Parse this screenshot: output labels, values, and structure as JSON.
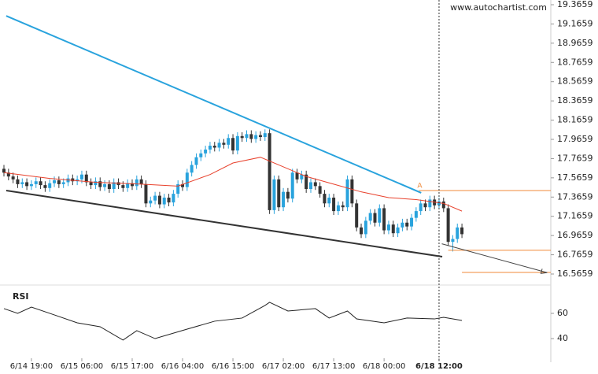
{
  "chart_data": {
    "type": "candlestick",
    "site": "www.autochartist.com",
    "up_color": "#29a3dd",
    "down_color": "#333333",
    "xlim": [
      -0.86,
      119.4
    ],
    "xticks": [
      {
        "value": 6,
        "label": "6/14 19:00"
      },
      {
        "value": 17,
        "label": "6/15 06:00"
      },
      {
        "value": 28,
        "label": "6/15 17:00"
      },
      {
        "value": 39,
        "label": "6/16 04:00"
      },
      {
        "value": 50,
        "label": "6/16 15:00"
      },
      {
        "value": 61,
        "label": "6/17 02:00"
      },
      {
        "value": 72,
        "label": "6/17 13:00"
      },
      {
        "value": 83,
        "label": "6/18 00:00"
      },
      {
        "value": 95,
        "label": "6/18 12:00"
      }
    ],
    "ylim": [
      16.484,
      19.415
    ],
    "yticks": [
      19.3659,
      19.1659,
      18.9659,
      18.7659,
      18.5659,
      18.3659,
      18.1659,
      17.9659,
      17.7659,
      17.5659,
      17.3659,
      17.1659,
      16.9659,
      16.7659,
      16.5659
    ],
    "open": [
      17.66,
      17.62,
      17.58,
      17.55,
      17.5,
      17.52,
      17.48,
      17.5,
      17.53,
      17.49,
      17.46,
      17.51,
      17.54,
      17.5,
      17.52,
      17.56,
      17.53,
      17.55,
      17.6,
      17.52,
      17.49,
      17.53,
      17.47,
      17.5,
      17.45,
      17.52,
      17.49,
      17.46,
      17.51,
      17.48,
      17.55,
      17.5,
      17.3,
      17.33,
      17.38,
      17.29,
      17.36,
      17.31,
      17.4,
      17.5,
      17.47,
      17.62,
      17.7,
      17.78,
      17.82,
      17.86,
      17.9,
      17.88,
      17.93,
      17.91,
      17.98,
      17.85,
      18.0,
      17.98,
      18.02,
      17.97,
      18.01,
      17.99,
      18.03,
      17.23,
      17.55,
      17.26,
      17.42,
      17.35,
      17.62,
      17.55,
      17.6,
      17.45,
      17.52,
      17.48,
      17.4,
      17.3,
      17.36,
      17.22,
      17.28,
      17.26,
      17.55,
      17.3,
      17.05,
      16.98,
      17.12,
      17.2,
      17.1,
      17.25,
      17.02,
      17.08,
      16.99,
      17.05,
      17.1,
      17.06,
      17.15,
      17.22,
      17.3,
      17.26,
      17.34,
      17.28,
      17.32,
      17.25,
      16.9,
      16.93,
      17.05
    ],
    "high": [
      17.7,
      17.66,
      17.62,
      17.59,
      17.56,
      17.56,
      17.54,
      17.57,
      17.57,
      17.53,
      17.55,
      17.58,
      17.58,
      17.56,
      17.6,
      17.6,
      17.59,
      17.64,
      17.64,
      17.56,
      17.57,
      17.57,
      17.54,
      17.54,
      17.56,
      17.56,
      17.53,
      17.55,
      17.55,
      17.59,
      17.59,
      17.54,
      17.37,
      17.42,
      17.42,
      17.4,
      17.4,
      17.44,
      17.54,
      17.54,
      17.66,
      17.74,
      17.82,
      17.86,
      17.9,
      17.94,
      17.94,
      17.97,
      17.97,
      18.02,
      18.02,
      18.04,
      18.04,
      18.06,
      18.06,
      18.05,
      18.05,
      18.07,
      18.07,
      17.59,
      17.59,
      17.46,
      17.46,
      17.66,
      17.66,
      17.64,
      17.64,
      17.56,
      17.56,
      17.52,
      17.44,
      17.4,
      17.4,
      17.32,
      17.32,
      17.59,
      17.59,
      17.34,
      17.09,
      17.16,
      17.24,
      17.24,
      17.29,
      17.29,
      17.12,
      17.12,
      17.09,
      17.14,
      17.14,
      17.19,
      17.26,
      17.34,
      17.34,
      17.38,
      17.38,
      17.36,
      17.36,
      17.29,
      16.97,
      17.09,
      17.09
    ],
    "low": [
      17.58,
      17.54,
      17.51,
      17.46,
      17.46,
      17.44,
      17.44,
      17.46,
      17.45,
      17.42,
      17.42,
      17.47,
      17.46,
      17.46,
      17.48,
      17.49,
      17.49,
      17.51,
      17.48,
      17.45,
      17.45,
      17.43,
      17.43,
      17.41,
      17.41,
      17.45,
      17.42,
      17.42,
      17.44,
      17.44,
      17.46,
      17.26,
      17.26,
      17.29,
      17.25,
      17.25,
      17.27,
      17.27,
      17.36,
      17.43,
      17.43,
      17.58,
      17.66,
      17.74,
      17.78,
      17.82,
      17.84,
      17.84,
      17.87,
      17.87,
      17.81,
      17.81,
      17.94,
      17.94,
      17.93,
      17.93,
      17.95,
      17.95,
      17.19,
      17.19,
      17.22,
      17.22,
      17.31,
      17.31,
      17.51,
      17.51,
      17.41,
      17.41,
      17.44,
      17.36,
      17.26,
      17.26,
      17.18,
      17.18,
      17.22,
      17.22,
      17.26,
      17.01,
      16.94,
      16.94,
      17.08,
      17.06,
      17.06,
      16.98,
      16.98,
      16.95,
      16.95,
      17.01,
      17.02,
      17.02,
      17.11,
      17.18,
      17.22,
      17.22,
      17.24,
      17.24,
      17.21,
      16.86,
      16.8,
      16.89,
      16.94
    ],
    "close": [
      17.62,
      17.58,
      17.55,
      17.5,
      17.52,
      17.48,
      17.5,
      17.53,
      17.49,
      17.46,
      17.51,
      17.54,
      17.5,
      17.52,
      17.56,
      17.53,
      17.55,
      17.6,
      17.52,
      17.49,
      17.53,
      17.47,
      17.5,
      17.45,
      17.52,
      17.49,
      17.46,
      17.51,
      17.48,
      17.55,
      17.5,
      17.3,
      17.33,
      17.38,
      17.29,
      17.36,
      17.31,
      17.4,
      17.5,
      17.47,
      17.62,
      17.7,
      17.78,
      17.82,
      17.86,
      17.9,
      17.88,
      17.93,
      17.91,
      17.98,
      17.85,
      18.0,
      17.98,
      18.02,
      17.97,
      18.01,
      17.99,
      18.03,
      17.23,
      17.55,
      17.26,
      17.42,
      17.35,
      17.62,
      17.55,
      17.6,
      17.45,
      17.52,
      17.48,
      17.4,
      17.3,
      17.36,
      17.22,
      17.28,
      17.26,
      17.55,
      17.3,
      17.05,
      16.98,
      17.12,
      17.2,
      17.1,
      17.25,
      17.02,
      17.08,
      16.99,
      17.05,
      17.1,
      17.06,
      17.15,
      17.22,
      17.3,
      17.26,
      17.34,
      17.28,
      17.32,
      17.25,
      16.9,
      16.93,
      17.05,
      16.98
    ],
    "moving_average": {
      "color": "#e8412c",
      "x": [
        0,
        10,
        20,
        30,
        38,
        45,
        50,
        56,
        60,
        66,
        72,
        78,
        84,
        90,
        96,
        100
      ],
      "values": [
        17.62,
        17.56,
        17.52,
        17.5,
        17.48,
        17.6,
        17.72,
        17.78,
        17.7,
        17.58,
        17.5,
        17.42,
        17.36,
        17.34,
        17.3,
        17.22
      ]
    },
    "resistance_line": {
      "color": "#29a3dd",
      "x": [
        0.5,
        91.1
      ],
      "values": [
        19.25,
        17.41
      ]
    },
    "support_line": {
      "color": "#333333",
      "x": [
        0.5,
        95.7
      ],
      "values": [
        17.434,
        16.746
      ]
    },
    "levels": {
      "color": "#f08a3a",
      "label": "A",
      "x": [
        90.6,
        97,
        100
      ],
      "values": [
        17.434,
        16.812,
        16.582
      ]
    },
    "forecast_arrow": {
      "color": "#444444",
      "x": [
        95.6,
        118.6
      ],
      "values": [
        16.88,
        16.58
      ]
    },
    "marker_x": 95,
    "rsi": {
      "title": "RSI",
      "color": "#222222",
      "ylim": [
        24.4,
        77.5
      ],
      "yticks": [
        60,
        40
      ],
      "x": [
        0,
        3,
        6,
        11,
        16,
        21,
        26,
        29,
        33,
        40,
        46,
        52,
        57,
        58,
        62,
        68,
        71,
        75,
        77,
        83,
        88,
        94,
        96,
        100
      ],
      "values": [
        63.8,
        60,
        65,
        58.8,
        52.5,
        49.4,
        38.8,
        46.3,
        40,
        47.5,
        53.8,
        56.3,
        66.3,
        68.8,
        61.9,
        63.8,
        56.3,
        61.9,
        55.6,
        52.5,
        56.3,
        55.6,
        56.9,
        54.4
      ]
    }
  }
}
